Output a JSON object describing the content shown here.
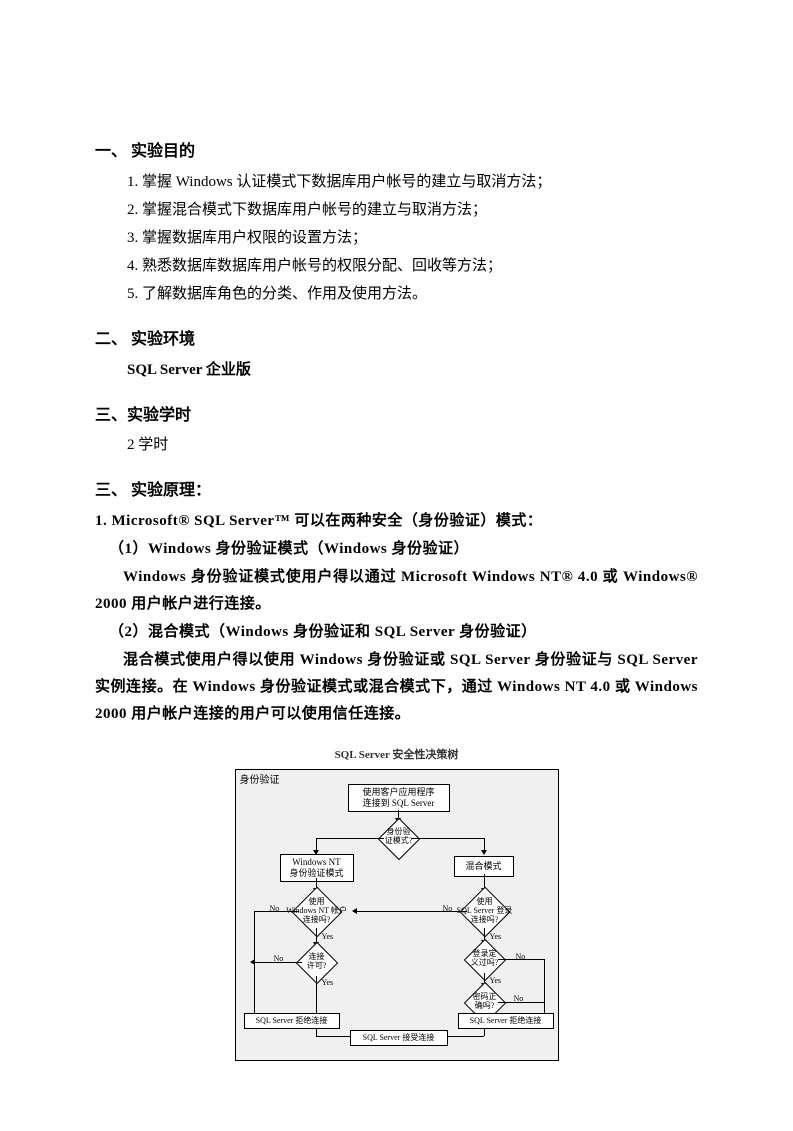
{
  "sections": {
    "s1": {
      "heading": "一、 实验目的",
      "items": [
        "1. 掌握 Windows 认证模式下数据库用户帐号的建立与取消方法；",
        "2. 掌握混合模式下数据库用户帐号的建立与取消方法；",
        "3. 掌握数据库用户权限的设置方法；",
        "4. 熟悉数据库数据库用户帐号的权限分配、回收等方法；",
        "5. 了解数据库角色的分类、作用及使用方法。"
      ]
    },
    "s2": {
      "heading": "二、 实验环境",
      "body": "SQL Server  企业版"
    },
    "s3": {
      "heading": "三、实验学时",
      "body": "2 学时"
    },
    "s4": {
      "heading": "三、 实验原理：",
      "p1": "1. Microsoft® SQL Server™ 可以在两种安全（身份验证）模式：",
      "p2": "（1）Windows 身份验证模式（Windows 身份验证）",
      "p3": "Windows 身份验证模式使用户得以通过 Microsoft Windows NT® 4.0 或 Windows® 2000 用户帐户进行连接。",
      "p4": "（2）混合模式（Windows 身份验证和 SQL Server 身份验证）",
      "p5": "混合模式使用户得以使用 Windows 身份验证或 SQL Server 身份验证与 SQL Server 实例连接。在 Windows 身份验证模式或混合模式下，通过 Windows NT 4.0 或 Windows 2000 用户帐户连接的用户可以使用信任连接。"
    }
  },
  "diagram": {
    "title": "SQL Server 安全性决策树",
    "frame_label": "身份验证",
    "top_box": "使用客户应用程序\n连接到 SQL Server",
    "d1": "身份验\n证模式?",
    "left_branch_label": "Windows NT\n身份验证模式",
    "right_branch_label": "混合模式",
    "d2": "使用\nWindows NT 帐户\n连接吗?",
    "d3": "使用\nSQL Server 登录\n连接吗?",
    "d4": "连接\n许可?",
    "d5": "登录定\n义过吗?",
    "d6": "密码正\n确吗?",
    "reject_left": "SQL Server 拒绝连接",
    "reject_right": "SQL Server 拒绝连接",
    "accept": "SQL Server 接受连接",
    "yes": "Yes",
    "no": "No",
    "colors": {
      "border": "#000000",
      "box_bg": "#ffffff",
      "page_bg": "#f0f0f0"
    }
  }
}
